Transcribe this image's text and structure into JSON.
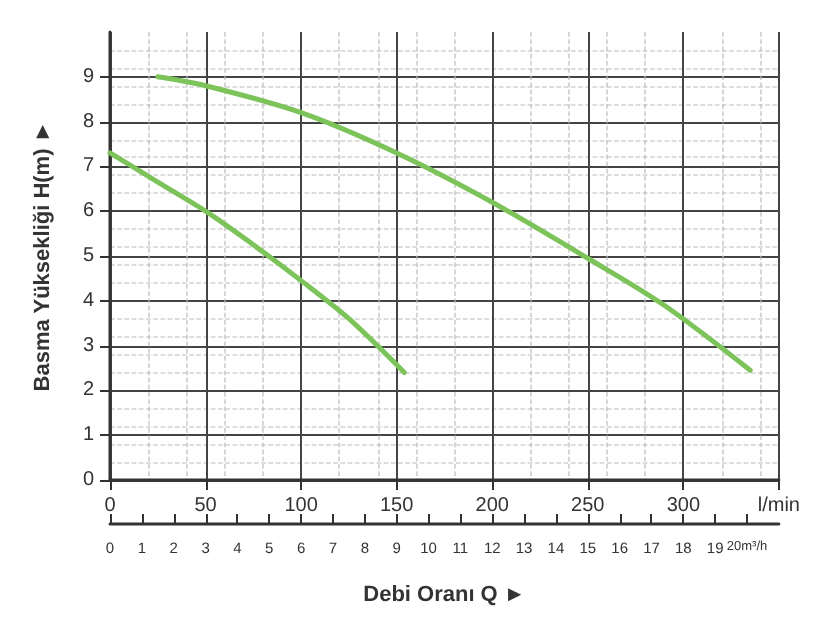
{
  "chart_data": {
    "type": "line",
    "xlabel": "Debi Oranı Q ►",
    "ylabel": "Basma Yüksekliği H(m) ►",
    "xlim": [
      0,
      350
    ],
    "xticks": [
      0,
      50,
      100,
      150,
      200,
      250,
      300,
      {
        "value": 350,
        "label": "l/min"
      }
    ],
    "x2lim": [
      0,
      21
    ],
    "x2ticks": [
      0,
      1,
      2,
      3,
      4,
      5,
      6,
      7,
      8,
      9,
      10,
      11,
      12,
      13,
      14,
      15,
      16,
      17,
      18,
      19,
      {
        "value": 20,
        "label": "20m³/h"
      }
    ],
    "ylim": [
      0,
      10
    ],
    "yticks": [
      0,
      1,
      2,
      3,
      4,
      5,
      6,
      7,
      8,
      9
    ],
    "grid": true,
    "marker": "none",
    "line_style": "solid",
    "series": [
      {
        "color": "#7cc35a",
        "x": [
          0,
          25,
          50,
          75,
          100,
          125,
          154
        ],
        "values": [
          7.3,
          6.65,
          6.0,
          5.25,
          4.45,
          3.6,
          2.4
        ]
      },
      {
        "color": "#7cc35a",
        "x": [
          25,
          50,
          100,
          150,
          200,
          250,
          290,
          335
        ],
        "values": [
          9.0,
          8.8,
          8.2,
          7.3,
          6.2,
          4.95,
          3.9,
          2.45
        ]
      }
    ]
  }
}
